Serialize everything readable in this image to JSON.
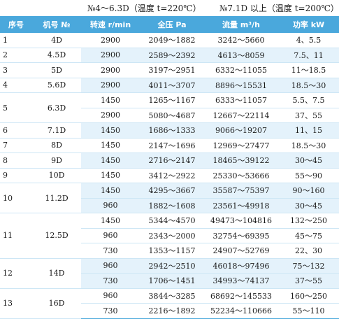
{
  "caption": {
    "left": "№4～6.3D（温度 t=220℃）",
    "right": "№7.1D 以上（温度 t=200℃）"
  },
  "headers": [
    "序号",
    "机号 №",
    "转速 r/min",
    "全压 Pa",
    "流量 m³/h",
    "功率 kW"
  ],
  "rows": [
    {
      "no": "1",
      "model": "4D",
      "entries": [
        {
          "speed": "2900",
          "pressure": "2049～1882",
          "flow": "3242～5660",
          "power": "4、5.5"
        }
      ]
    },
    {
      "no": "2",
      "model": "4.5D",
      "entries": [
        {
          "speed": "2900",
          "pressure": "2589～2392",
          "flow": "4613～8059",
          "power": "7.5、11"
        }
      ]
    },
    {
      "no": "3",
      "model": "5D",
      "entries": [
        {
          "speed": "2900",
          "pressure": "3197～2951",
          "flow": "6332～11055",
          "power": "11～18.5"
        }
      ]
    },
    {
      "no": "4",
      "model": "5.6D",
      "entries": [
        {
          "speed": "2900",
          "pressure": "4011～3707",
          "flow": "8896～15531",
          "power": "18.5～30"
        }
      ]
    },
    {
      "no": "5",
      "model": "6.3D",
      "entries": [
        {
          "speed": "1450",
          "pressure": "1265～1167",
          "flow": "6333～11057",
          "power": "5.5、7.5"
        },
        {
          "speed": "2900",
          "pressure": "5080～4687",
          "flow": "12667～22114",
          "power": "37、55"
        }
      ]
    },
    {
      "no": "6",
      "model": "7.1D",
      "entries": [
        {
          "speed": "1450",
          "pressure": "1686～1333",
          "flow": "9066～19207",
          "power": "11、15"
        }
      ]
    },
    {
      "no": "7",
      "model": "8D",
      "entries": [
        {
          "speed": "1450",
          "pressure": "2147～1696",
          "flow": "12969～27477",
          "power": "18.5～30"
        }
      ]
    },
    {
      "no": "8",
      "model": "9D",
      "entries": [
        {
          "speed": "1450",
          "pressure": "2716～2147",
          "flow": "18465～39122",
          "power": "30～45"
        }
      ]
    },
    {
      "no": "9",
      "model": "10D",
      "entries": [
        {
          "speed": "1450",
          "pressure": "3412～2922",
          "flow": "25330～53666",
          "power": "55～90"
        }
      ]
    },
    {
      "no": "10",
      "model": "11.2D",
      "entries": [
        {
          "speed": "1450",
          "pressure": "4295～3667",
          "flow": "35587～75397",
          "power": "90～160"
        },
        {
          "speed": "960",
          "pressure": "1882～1608",
          "flow": "23561～49918",
          "power": "30～45"
        }
      ]
    },
    {
      "no": "11",
      "model": "12.5D",
      "entries": [
        {
          "speed": "1450",
          "pressure": "5344～4570",
          "flow": "49473～104816",
          "power": "132～250"
        },
        {
          "speed": "960",
          "pressure": "2343～2000",
          "flow": "32754～69395",
          "power": "45～75"
        },
        {
          "speed": "730",
          "pressure": "1353～1157",
          "flow": "24907～52769",
          "power": "22、30"
        }
      ]
    },
    {
      "no": "12",
      "model": "14D",
      "entries": [
        {
          "speed": "960",
          "pressure": "2942～2510",
          "flow": "46018～97496",
          "power": "75～132"
        },
        {
          "speed": "730",
          "pressure": "1706～1451",
          "flow": "34993～74137",
          "power": "37～55"
        }
      ]
    },
    {
      "no": "13",
      "model": "16D",
      "entries": [
        {
          "speed": "960",
          "pressure": "3844～3285",
          "flow": "68692～145533",
          "power": "160～250"
        },
        {
          "speed": "730",
          "pressure": "2216～1892",
          "flow": "52234～110666",
          "power": "55～110"
        }
      ]
    }
  ]
}
